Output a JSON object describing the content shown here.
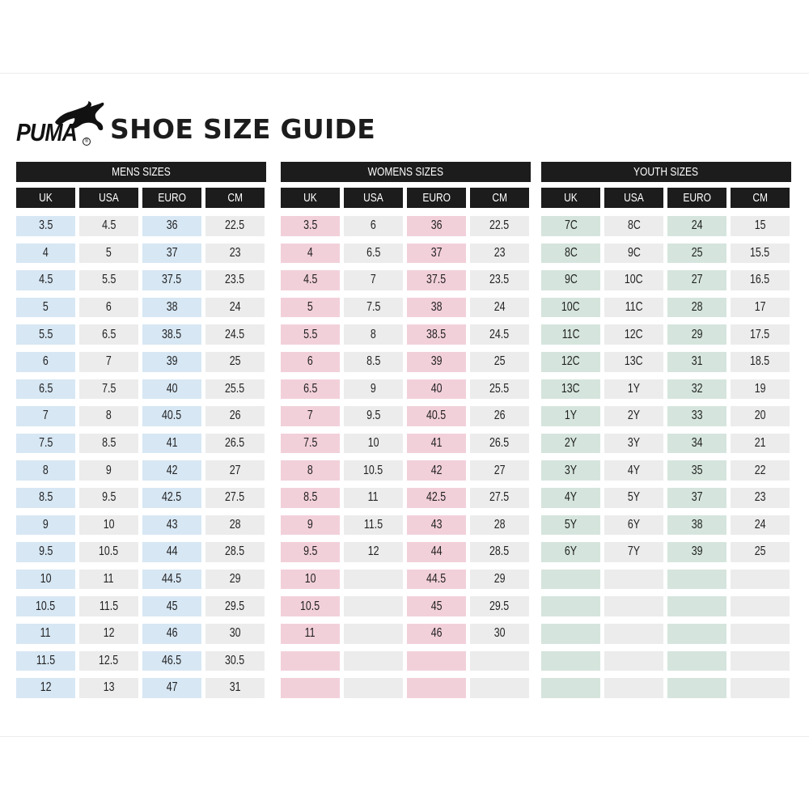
{
  "brand": {
    "name": "PUMA",
    "registered_mark": "®"
  },
  "title": "SHOE SIZE GUIDE",
  "colors": {
    "header_bg": "#1c1c1c",
    "mens_accent": "#d7e7f4",
    "womens_accent": "#f2d0da",
    "youth_accent": "#d5e5dd",
    "neutral": "#ececec"
  },
  "sections": [
    {
      "id": "mens",
      "title": "MENS SIZES",
      "accent_class": "c-blue",
      "columns": [
        "UK",
        "USA",
        "EURO",
        "CM"
      ],
      "accent_columns": [
        0,
        2
      ],
      "rows": [
        [
          "3.5",
          "4.5",
          "36",
          "22.5"
        ],
        [
          "4",
          "5",
          "37",
          "23"
        ],
        [
          "4.5",
          "5.5",
          "37.5",
          "23.5"
        ],
        [
          "5",
          "6",
          "38",
          "24"
        ],
        [
          "5.5",
          "6.5",
          "38.5",
          "24.5"
        ],
        [
          "6",
          "7",
          "39",
          "25"
        ],
        [
          "6.5",
          "7.5",
          "40",
          "25.5"
        ],
        [
          "7",
          "8",
          "40.5",
          "26"
        ],
        [
          "7.5",
          "8.5",
          "41",
          "26.5"
        ],
        [
          "8",
          "9",
          "42",
          "27"
        ],
        [
          "8.5",
          "9.5",
          "42.5",
          "27.5"
        ],
        [
          "9",
          "10",
          "43",
          "28"
        ],
        [
          "9.5",
          "10.5",
          "44",
          "28.5"
        ],
        [
          "10",
          "11",
          "44.5",
          "29"
        ],
        [
          "10.5",
          "11.5",
          "45",
          "29.5"
        ],
        [
          "11",
          "12",
          "46",
          "30"
        ],
        [
          "11.5",
          "12.5",
          "46.5",
          "30.5"
        ],
        [
          "12",
          "13",
          "47",
          "31"
        ]
      ]
    },
    {
      "id": "womens",
      "title": "WOMENS SIZES",
      "accent_class": "c-pink",
      "columns": [
        "UK",
        "USA",
        "EURO",
        "CM"
      ],
      "accent_columns": [
        0,
        2
      ],
      "rows": [
        [
          "3.5",
          "6",
          "36",
          "22.5"
        ],
        [
          "4",
          "6.5",
          "37",
          "23"
        ],
        [
          "4.5",
          "7",
          "37.5",
          "23.5"
        ],
        [
          "5",
          "7.5",
          "38",
          "24"
        ],
        [
          "5.5",
          "8",
          "38.5",
          "24.5"
        ],
        [
          "6",
          "8.5",
          "39",
          "25"
        ],
        [
          "6.5",
          "9",
          "40",
          "25.5"
        ],
        [
          "7",
          "9.5",
          "40.5",
          "26"
        ],
        [
          "7.5",
          "10",
          "41",
          "26.5"
        ],
        [
          "8",
          "10.5",
          "42",
          "27"
        ],
        [
          "8.5",
          "11",
          "42.5",
          "27.5"
        ],
        [
          "9",
          "11.5",
          "43",
          "28"
        ],
        [
          "9.5",
          "12",
          "44",
          "28.5"
        ],
        [
          "10",
          "",
          "44.5",
          "29"
        ],
        [
          "10.5",
          "",
          "45",
          "29.5"
        ],
        [
          "11",
          "",
          "46",
          "30"
        ],
        [
          "",
          "",
          "",
          ""
        ],
        [
          "",
          "",
          "",
          ""
        ]
      ]
    },
    {
      "id": "youth",
      "title": "YOUTH SIZES",
      "accent_class": "c-green",
      "columns": [
        "UK",
        "USA",
        "EURO",
        "CM"
      ],
      "accent_columns": [
        0,
        2
      ],
      "rows": [
        [
          "7C",
          "8C",
          "24",
          "15"
        ],
        [
          "8C",
          "9C",
          "25",
          "15.5"
        ],
        [
          "9C",
          "10C",
          "27",
          "16.5"
        ],
        [
          "10C",
          "11C",
          "28",
          "17"
        ],
        [
          "11C",
          "12C",
          "29",
          "17.5"
        ],
        [
          "12C",
          "13C",
          "31",
          "18.5"
        ],
        [
          "13C",
          "1Y",
          "32",
          "19"
        ],
        [
          "1Y",
          "2Y",
          "33",
          "20"
        ],
        [
          "2Y",
          "3Y",
          "34",
          "21"
        ],
        [
          "3Y",
          "4Y",
          "35",
          "22"
        ],
        [
          "4Y",
          "5Y",
          "37",
          "23"
        ],
        [
          "5Y",
          "6Y",
          "38",
          "24"
        ],
        [
          "6Y",
          "7Y",
          "39",
          "25"
        ],
        [
          "",
          "",
          "",
          ""
        ],
        [
          "",
          "",
          "",
          ""
        ],
        [
          "",
          "",
          "",
          ""
        ],
        [
          "",
          "",
          "",
          ""
        ],
        [
          "",
          "",
          "",
          ""
        ]
      ]
    }
  ]
}
